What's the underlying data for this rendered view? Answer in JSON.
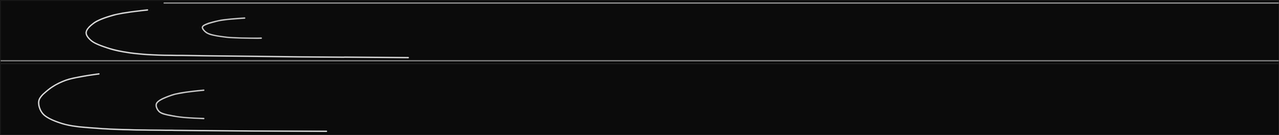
{
  "chart_data": [
    {
      "type": "line",
      "xlim": [
        0,
        100
      ],
      "ylim": [
        0,
        100
      ],
      "tick_labels": false,
      "series": [
        {
          "color": "#d8d8d8",
          "x": [
            11.5,
            8.9,
            7.3,
            6.7,
            7.1,
            8.6,
            10.8,
            15.9,
            31.9
          ],
          "values": [
            85,
            77,
            64,
            49,
            36,
            23,
            15,
            12,
            9
          ]
        },
        {
          "color": "#c8c8c8",
          "x": [
            19.1,
            16.9,
            15.8,
            16.1,
            17.5,
            20.4
          ],
          "values": [
            72,
            67,
            58,
            49,
            42,
            40
          ]
        },
        {
          "color": "#8a8a8a",
          "x": [
            12.8,
            100
          ],
          "values": [
            96,
            96
          ]
        },
        {
          "color": "#7a7a7a",
          "x": [
            0,
            100
          ],
          "values": [
            4,
            4
          ]
        }
      ]
    },
    {
      "type": "line",
      "xlim": [
        0,
        100
      ],
      "ylim": [
        0,
        100
      ],
      "tick_labels": false,
      "series": [
        {
          "color": "#d8d8d8",
          "x": [
            7.7,
            5.1,
            3.7,
            3.0,
            3.3,
            4.8,
            7.7,
            15.9,
            25.5
          ],
          "values": [
            86,
            77,
            63,
            48,
            30,
            16,
            9,
            6,
            5
          ]
        },
        {
          "color": "#c8c8c8",
          "x": [
            15.9,
            13.4,
            12.2,
            12.4,
            13.7,
            15.9
          ],
          "values": [
            63,
            56,
            44,
            33,
            26,
            23
          ]
        }
      ]
    }
  ]
}
